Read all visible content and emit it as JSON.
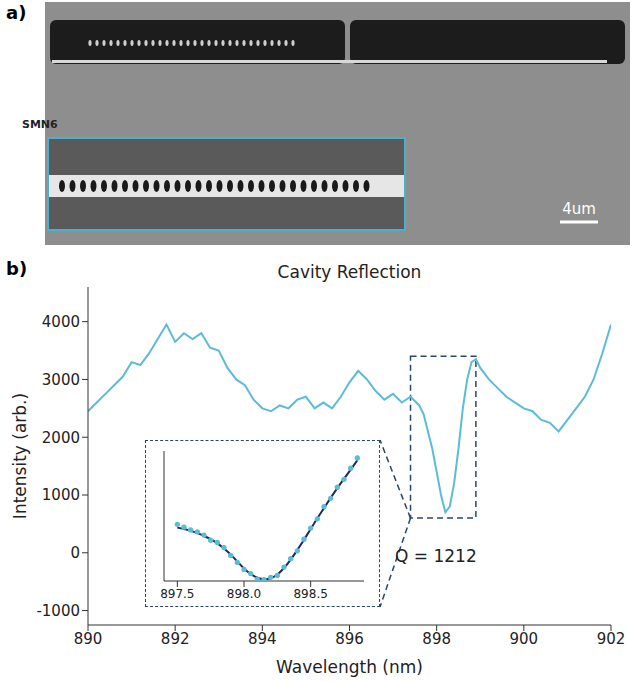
{
  "figure": {
    "panels": [
      {
        "label": "a)",
        "texts": [
          "SMN6"
        ],
        "scale_bar": "4um"
      },
      {
        "label": "b)"
      }
    ]
  },
  "chart_data": [
    {
      "type": "line",
      "title": "Cavity Reflection",
      "x_label": "Wavelength (nm)",
      "y_label": "Intensity (arb.)",
      "color": "#5bbcd6",
      "x": [
        890.0,
        890.2,
        890.4,
        890.6,
        890.8,
        891.0,
        891.2,
        891.4,
        891.6,
        891.8,
        892.0,
        892.2,
        892.4,
        892.6,
        892.8,
        893.0,
        893.2,
        893.4,
        893.6,
        893.8,
        894.0,
        894.2,
        894.4,
        894.6,
        894.8,
        895.0,
        895.2,
        895.4,
        895.6,
        895.8,
        896.0,
        896.2,
        896.4,
        896.6,
        896.8,
        897.0,
        897.2,
        897.4,
        897.6,
        897.7,
        897.8,
        897.9,
        898.0,
        898.1,
        898.2,
        898.3,
        898.4,
        898.5,
        898.6,
        898.7,
        898.8,
        898.9,
        899.0,
        899.2,
        899.4,
        899.6,
        899.8,
        900.0,
        900.2,
        900.4,
        900.6,
        900.8,
        901.0,
        901.2,
        901.4,
        901.6,
        901.8,
        902.0
      ],
      "values": [
        2450,
        2600,
        2750,
        2900,
        3050,
        3300,
        3250,
        3450,
        3700,
        3950,
        3650,
        3800,
        3700,
        3800,
        3550,
        3500,
        3200,
        3000,
        2900,
        2650,
        2500,
        2450,
        2550,
        2500,
        2650,
        2700,
        2500,
        2600,
        2500,
        2700,
        2950,
        3150,
        3000,
        2800,
        2650,
        2750,
        2600,
        2700,
        2550,
        2400,
        2100,
        1800,
        1400,
        1000,
        700,
        800,
        1200,
        1800,
        2500,
        3000,
        3300,
        3350,
        3200,
        3000,
        2850,
        2700,
        2600,
        2500,
        2450,
        2300,
        2250,
        2100,
        2300,
        2500,
        2700,
        3000,
        3450,
        3950
      ],
      "xlim": [
        890,
        902
      ],
      "xticks": [
        890,
        892,
        894,
        896,
        898,
        900,
        902
      ],
      "ylim": [
        -1250,
        4600
      ],
      "yticks": [
        -1000,
        0,
        1000,
        2000,
        3000,
        4000
      ],
      "annotations": [
        "Q = 1212"
      ]
    },
    {
      "type": "line",
      "x": [
        897.5,
        897.55,
        897.6,
        897.65,
        897.7,
        897.75,
        897.8,
        897.85,
        897.9,
        897.95,
        898.0,
        898.05,
        898.1,
        898.15,
        898.2,
        898.25,
        898.3,
        898.35,
        898.4,
        898.45,
        898.5,
        898.55,
        898.6,
        898.65,
        898.7,
        898.75,
        898.8,
        898.85
      ],
      "series": [
        {
          "type": "scatter",
          "color": "#5bbcd6",
          "marker": "circle",
          "values": [
            1820,
            1760,
            1700,
            1660,
            1590,
            1480,
            1430,
            1320,
            1150,
            1000,
            850,
            760,
            640,
            630,
            680,
            720,
            900,
            1080,
            1250,
            1500,
            1740,
            1940,
            2200,
            2380,
            2620,
            2790,
            3030,
            3250
          ]
        },
        {
          "type": "line",
          "color": "#1c2c5a",
          "line_style": "solid",
          "values": [
            1750,
            1720,
            1680,
            1630,
            1570,
            1500,
            1410,
            1300,
            1170,
            1020,
            870,
            750,
            670,
            640,
            660,
            740,
            880,
            1060,
            1270,
            1490,
            1720,
            1950,
            2170,
            2390,
            2600,
            2800,
            3000,
            3200
          ]
        }
      ],
      "xlim": [
        897.4,
        898.9
      ],
      "xticks": [
        {
          "value": 897.5,
          "label": "897.5"
        },
        {
          "value": 898,
          "label": "898.0"
        },
        {
          "value": 898.5,
          "label": "898.5"
        }
      ],
      "ylim": [
        600,
        3400
      ],
      "tick_labels": "x"
    }
  ]
}
